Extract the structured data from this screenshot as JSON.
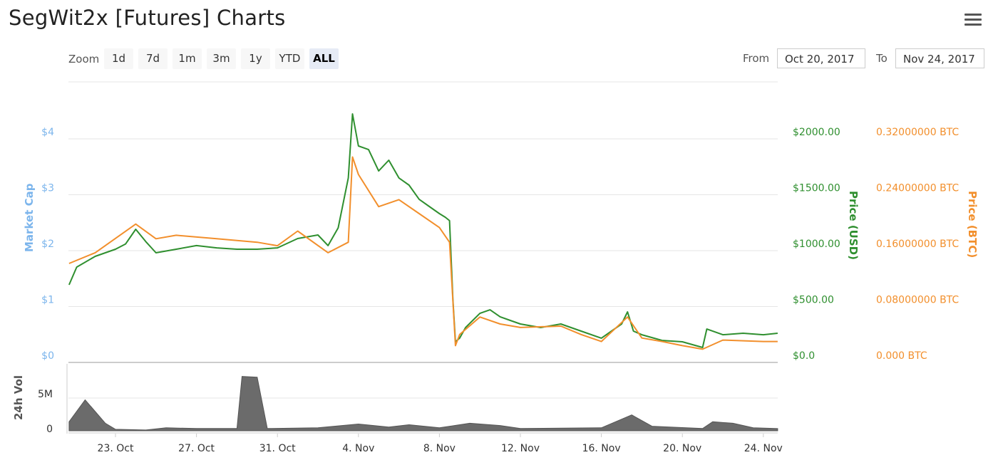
{
  "header": {
    "title": "SegWit2x [Futures] Charts",
    "menu_icon": "hamburger-icon"
  },
  "range_selector": {
    "zoom_label": "Zoom",
    "buttons": [
      "1d",
      "7d",
      "1m",
      "3m",
      "1y",
      "YTD",
      "ALL"
    ],
    "active": "ALL",
    "from_label": "From",
    "from_value": "Oct 20, 2017",
    "to_label": "To",
    "to_value": "Nov 24, 2017"
  },
  "chart_data": {
    "type": "line",
    "colors": {
      "usd": "#2f8f2f",
      "btc": "#f28f2c",
      "market_cap": "#7cb5ec",
      "volume": "#6b6b6b",
      "grid": "#e6e6e6"
    },
    "x_range": [
      "2017-10-20T17:00",
      "2017-11-24T17:00"
    ],
    "x_ticks": [
      {
        "date": "2017-10-23",
        "label": "23. Oct"
      },
      {
        "date": "2017-10-27",
        "label": "27. Oct"
      },
      {
        "date": "2017-10-31",
        "label": "31. Oct"
      },
      {
        "date": "2017-11-04",
        "label": "4. Nov"
      },
      {
        "date": "2017-11-08",
        "label": "8. Nov"
      },
      {
        "date": "2017-11-12",
        "label": "12. Nov"
      },
      {
        "date": "2017-11-16",
        "label": "16. Nov"
      },
      {
        "date": "2017-11-20",
        "label": "20. Nov"
      },
      {
        "date": "2017-11-24",
        "label": "24. Nov"
      }
    ],
    "axes": {
      "market_cap": {
        "title": "Market Cap",
        "ticks": [
          "$0",
          "$1",
          "$2",
          "$3",
          "$4"
        ]
      },
      "usd": {
        "title": "Price (USD)",
        "ylim": [
          0,
          2000
        ],
        "ticks": [
          "$0.0",
          "$500.00",
          "$1000.00",
          "$1500.00",
          "$2000.00"
        ]
      },
      "btc": {
        "title": "Price (BTC)",
        "ylim": [
          0,
          0.32
        ],
        "ticks": [
          "0.000 BTC",
          "0.08000000 BTC",
          "0.16000000 BTC",
          "0.24000000 BTC",
          "0.32000000 BTC"
        ]
      },
      "volume": {
        "title": "24h Vol",
        "ylim": [
          0,
          5000000
        ],
        "ticks": [
          "0",
          "5M"
        ]
      }
    },
    "series": [
      {
        "name": "Price (USD)",
        "axis": "usd",
        "points": [
          [
            "2017-10-20T17:00",
            694
          ],
          [
            "2017-10-21T02:00",
            853
          ],
          [
            "2017-10-22T00:00",
            949
          ],
          [
            "2017-10-23T00:00",
            1013
          ],
          [
            "2017-10-23T12:00",
            1060
          ],
          [
            "2017-10-24T00:00",
            1191
          ],
          [
            "2017-10-24T12:00",
            1080
          ],
          [
            "2017-10-25T00:00",
            981
          ],
          [
            "2017-10-26T00:00",
            1013
          ],
          [
            "2017-10-27T00:00",
            1045
          ],
          [
            "2017-10-28T00:00",
            1025
          ],
          [
            "2017-10-29T00:00",
            1013
          ],
          [
            "2017-10-30T00:00",
            1013
          ],
          [
            "2017-10-31T00:00",
            1025
          ],
          [
            "2017-11-01T00:00",
            1108
          ],
          [
            "2017-11-02T00:00",
            1140
          ],
          [
            "2017-11-02T12:00",
            1045
          ],
          [
            "2017-11-03T00:00",
            1204
          ],
          [
            "2017-11-03T12:00",
            1650
          ],
          [
            "2017-11-03T17:00",
            2223
          ],
          [
            "2017-11-04T00:00",
            1936
          ],
          [
            "2017-11-04T12:00",
            1904
          ],
          [
            "2017-11-05T00:00",
            1713
          ],
          [
            "2017-11-05T12:00",
            1809
          ],
          [
            "2017-11-06T00:00",
            1650
          ],
          [
            "2017-11-06T12:00",
            1586
          ],
          [
            "2017-11-07T00:00",
            1459
          ],
          [
            "2017-11-07T12:00",
            1395
          ],
          [
            "2017-11-08T00:00",
            1331
          ],
          [
            "2017-11-08T07:00",
            1299
          ],
          [
            "2017-11-08T12:00",
            1268
          ],
          [
            "2017-11-08T16:00",
            567
          ],
          [
            "2017-11-08T19:00",
            185
          ],
          [
            "2017-11-09T00:00",
            217
          ],
          [
            "2017-11-09T07:00",
            312
          ],
          [
            "2017-11-10T00:00",
            439
          ],
          [
            "2017-11-10T12:00",
            471
          ],
          [
            "2017-11-11T00:00",
            408
          ],
          [
            "2017-11-11T12:00",
            376
          ],
          [
            "2017-11-12T00:00",
            344
          ],
          [
            "2017-11-13T00:00",
            312
          ],
          [
            "2017-11-14T00:00",
            344
          ],
          [
            "2017-11-15T00:00",
            280
          ],
          [
            "2017-11-16T00:00",
            217
          ],
          [
            "2017-11-17T00:00",
            344
          ],
          [
            "2017-11-17T07:00",
            452
          ],
          [
            "2017-11-17T14:00",
            280
          ],
          [
            "2017-11-18T00:00",
            248
          ],
          [
            "2017-11-19T00:00",
            197
          ],
          [
            "2017-11-20T00:00",
            185
          ],
          [
            "2017-11-21T00:00",
            134
          ],
          [
            "2017-11-21T05:00",
            299
          ],
          [
            "2017-11-22T00:00",
            248
          ],
          [
            "2017-11-23T00:00",
            261
          ],
          [
            "2017-11-24T00:00",
            248
          ],
          [
            "2017-11-24T17:00",
            261
          ]
        ]
      },
      {
        "name": "Price (BTC)",
        "axis": "btc",
        "points": [
          [
            "2017-10-20T17:00",
            0.1417
          ],
          [
            "2017-10-22T00:00",
            0.157
          ],
          [
            "2017-10-24T00:00",
            0.198
          ],
          [
            "2017-10-25T00:00",
            0.177
          ],
          [
            "2017-10-26T00:00",
            0.182
          ],
          [
            "2017-10-28T00:00",
            0.177
          ],
          [
            "2017-10-30T00:00",
            0.172
          ],
          [
            "2017-10-31T00:00",
            0.167
          ],
          [
            "2017-11-01T00:00",
            0.188
          ],
          [
            "2017-11-02T12:00",
            0.157
          ],
          [
            "2017-11-03T12:00",
            0.172
          ],
          [
            "2017-11-03T17:00",
            0.294
          ],
          [
            "2017-11-04T00:00",
            0.269
          ],
          [
            "2017-11-05T00:00",
            0.223
          ],
          [
            "2017-11-06T00:00",
            0.233
          ],
          [
            "2017-11-07T00:00",
            0.213
          ],
          [
            "2017-11-08T00:00",
            0.193
          ],
          [
            "2017-11-08T12:00",
            0.172
          ],
          [
            "2017-11-08T19:00",
            0.024
          ],
          [
            "2017-11-09T00:00",
            0.04
          ],
          [
            "2017-11-10T00:00",
            0.065
          ],
          [
            "2017-11-11T00:00",
            0.055
          ],
          [
            "2017-11-12T00:00",
            0.05
          ],
          [
            "2017-11-14T00:00",
            0.052
          ],
          [
            "2017-11-15T00:00",
            0.04
          ],
          [
            "2017-11-16T00:00",
            0.03
          ],
          [
            "2017-11-17T07:00",
            0.065
          ],
          [
            "2017-11-18T00:00",
            0.035
          ],
          [
            "2017-11-19T00:00",
            0.03
          ],
          [
            "2017-11-20T00:00",
            0.024
          ],
          [
            "2017-11-21T00:00",
            0.019
          ],
          [
            "2017-11-22T00:00",
            0.032
          ],
          [
            "2017-11-24T00:00",
            0.03
          ],
          [
            "2017-11-24T17:00",
            0.03
          ]
        ]
      },
      {
        "name": "24h Vol",
        "axis": "volume",
        "type": "area",
        "points": [
          [
            "2017-10-20T17:00",
            1200000
          ],
          [
            "2017-10-21T12:00",
            4100000
          ],
          [
            "2017-10-22T12:00",
            1000000
          ],
          [
            "2017-10-23T00:00",
            200000
          ],
          [
            "2017-10-24T12:00",
            100000
          ],
          [
            "2017-10-25T12:00",
            400000
          ],
          [
            "2017-10-27T00:00",
            300000
          ],
          [
            "2017-10-29T00:00",
            300000
          ],
          [
            "2017-10-29T06:00",
            7200000
          ],
          [
            "2017-10-30T00:00",
            7100000
          ],
          [
            "2017-10-30T12:00",
            300000
          ],
          [
            "2017-11-02T00:00",
            400000
          ],
          [
            "2017-11-04T00:00",
            900000
          ],
          [
            "2017-11-05T12:00",
            500000
          ],
          [
            "2017-11-06T12:00",
            800000
          ],
          [
            "2017-11-08T00:00",
            400000
          ],
          [
            "2017-11-09T12:00",
            1000000
          ],
          [
            "2017-11-11T00:00",
            700000
          ],
          [
            "2017-11-12T00:00",
            300000
          ],
          [
            "2017-11-16T00:00",
            400000
          ],
          [
            "2017-11-17T12:00",
            2100000
          ],
          [
            "2017-11-18T12:00",
            600000
          ],
          [
            "2017-11-21T00:00",
            300000
          ],
          [
            "2017-11-21T12:00",
            1200000
          ],
          [
            "2017-11-22T12:00",
            1000000
          ],
          [
            "2017-11-23T12:00",
            400000
          ],
          [
            "2017-11-24T17:00",
            300000
          ]
        ]
      }
    ]
  }
}
